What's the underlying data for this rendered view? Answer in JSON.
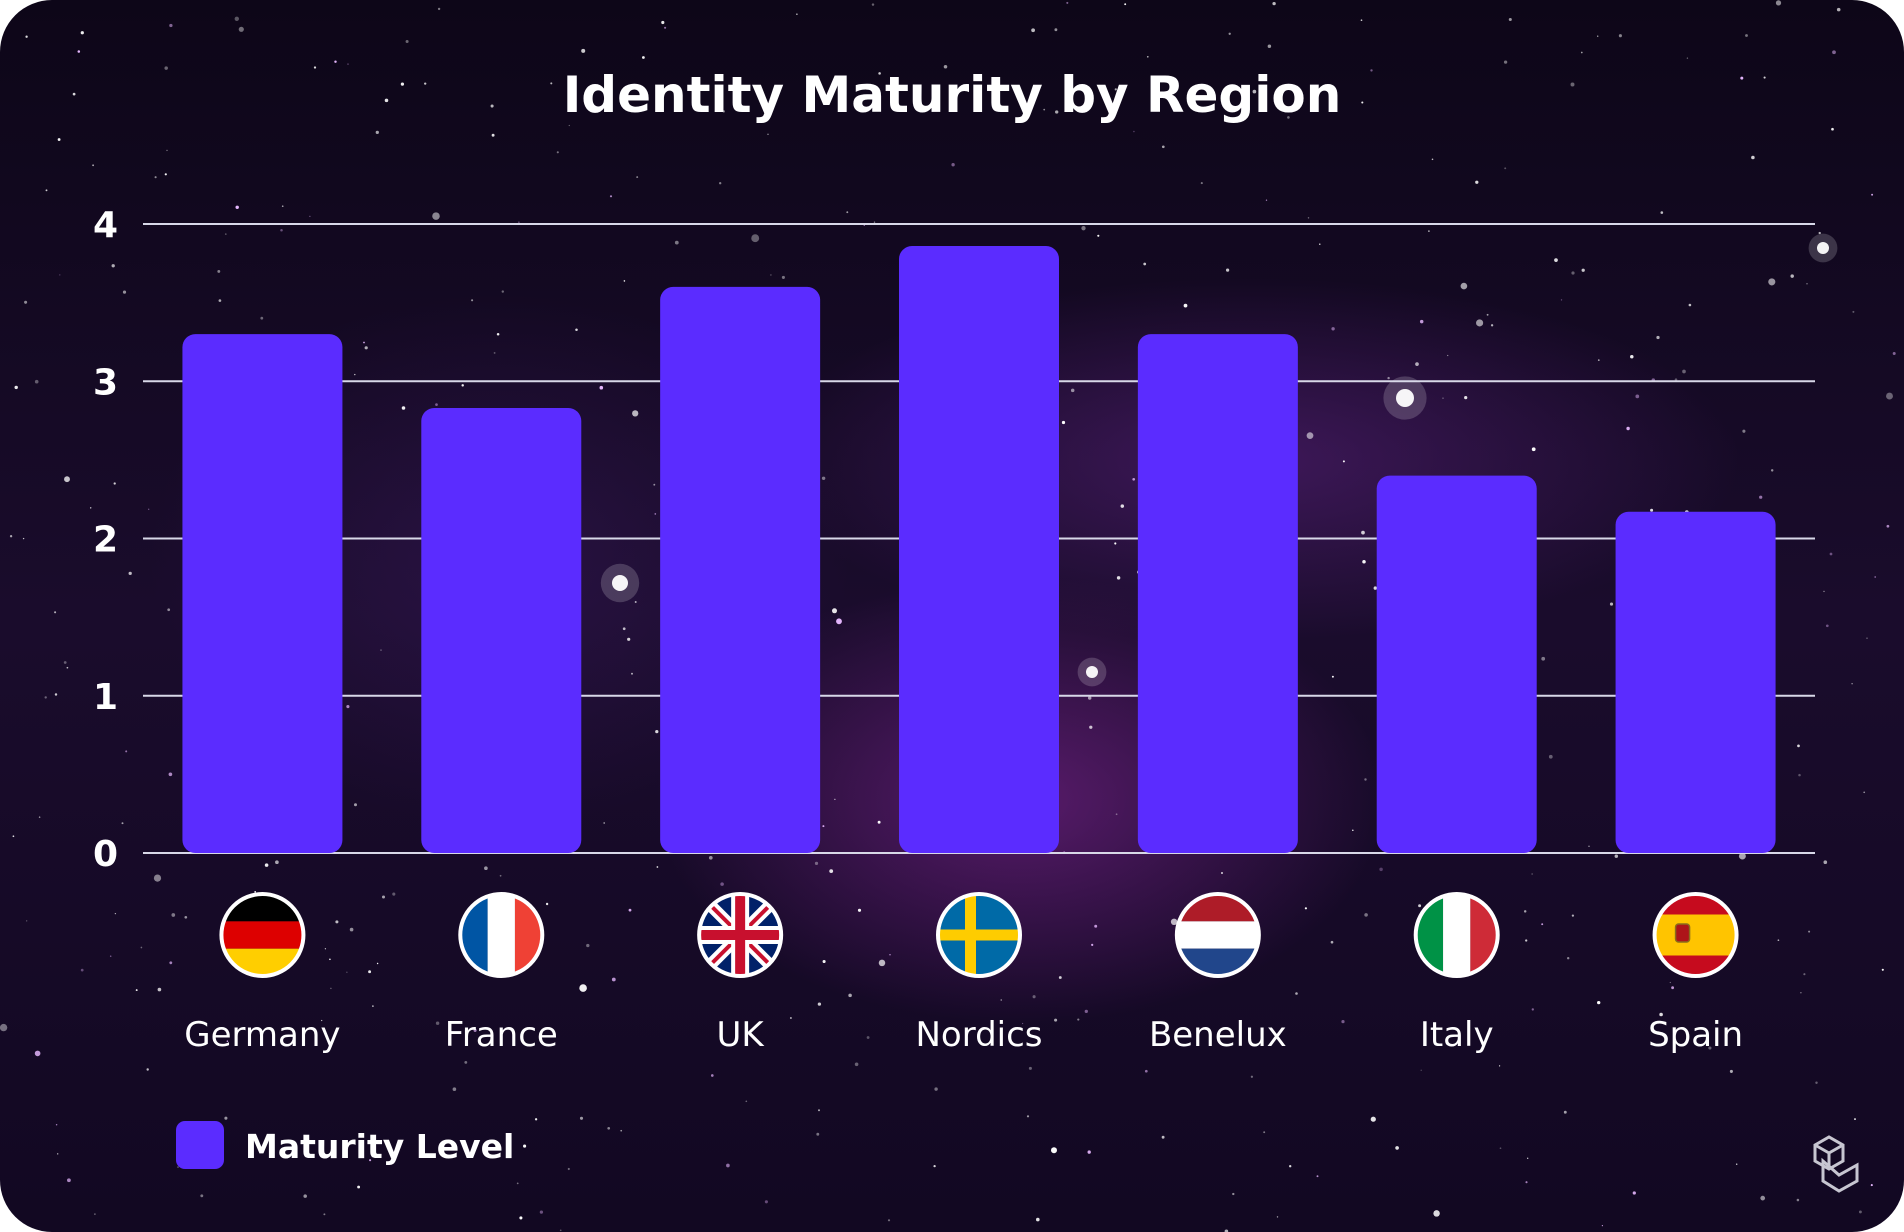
{
  "chart_data": {
    "type": "bar",
    "title": "Identity Maturity by Region",
    "xlabel": "",
    "ylabel": "",
    "ylim": [
      0,
      4
    ],
    "yticks": [
      0,
      1,
      2,
      3,
      4
    ],
    "grid": true,
    "legend_placement": "bottom-left",
    "categories": [
      "Germany",
      "France",
      "UK",
      "Nordics",
      "Benelux",
      "Italy",
      "Spain"
    ],
    "flag_icons": [
      "flag-germany-icon",
      "flag-france-icon",
      "flag-uk-icon",
      "flag-sweden-icon",
      "flag-netherlands-icon",
      "flag-italy-icon",
      "flag-spain-icon"
    ],
    "series": [
      {
        "name": "Maturity Level",
        "color": "#5b2cff",
        "values": [
          3.3,
          2.83,
          3.6,
          3.86,
          3.3,
          2.4,
          2.17
        ]
      }
    ]
  },
  "colors": {
    "bar": "#5b2cff",
    "gridline": "#d8d8e8",
    "text": "#ffffff"
  },
  "brand_icon": "logo-cube-icon"
}
